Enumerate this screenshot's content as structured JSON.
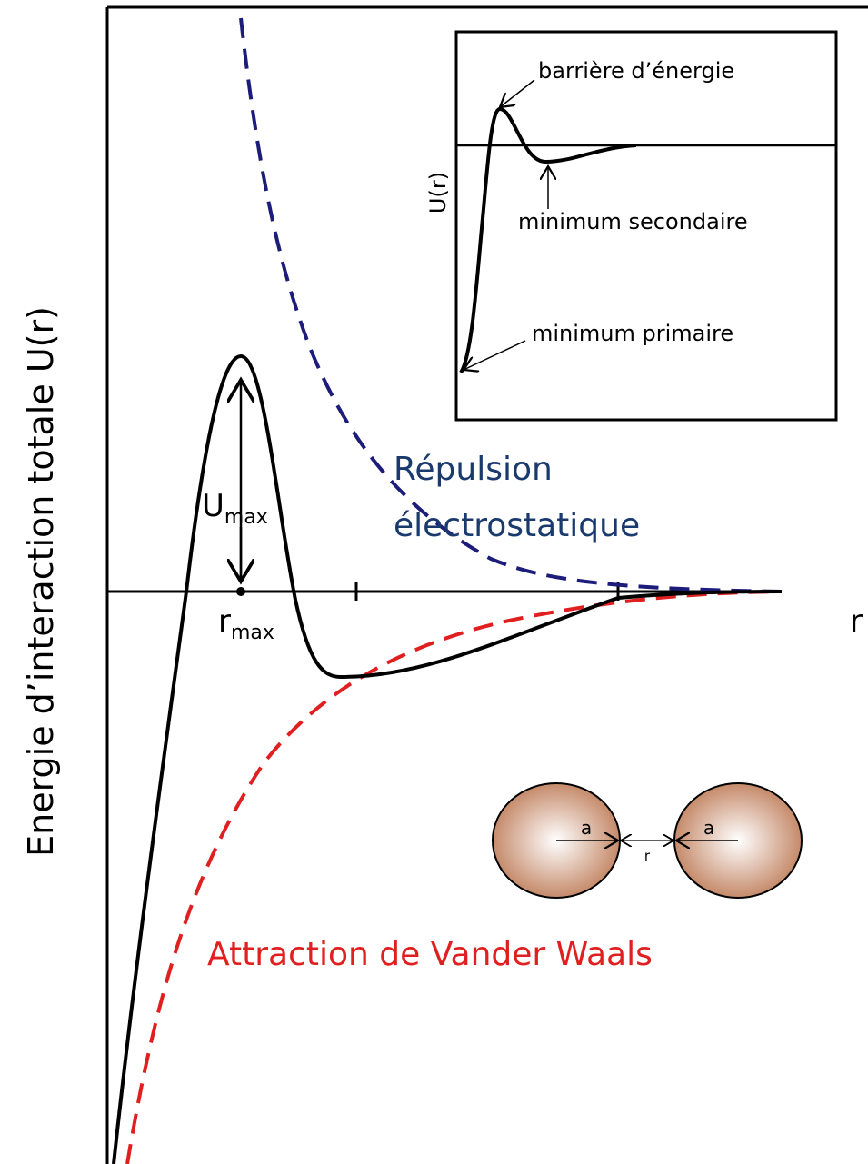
{
  "y_axis_label": "Energie d’interaction totale U(r)",
  "x_axis_label": "r",
  "u_max": {
    "main": "U",
    "sub": "max"
  },
  "r_max": {
    "main": "r",
    "sub": "max"
  },
  "repulsion_label": [
    "Répulsion",
    "électrostatique"
  ],
  "attraction_label": "Attraction de Vander Waals",
  "inset": {
    "y_label": "U(r)",
    "barrier": "barrière d’énergie",
    "secondary_min": "minimum secondaire",
    "primary_min": "minimum primaire"
  },
  "spheres": {
    "radius_left": "a",
    "distance": "r",
    "radius_right": "a"
  }
}
